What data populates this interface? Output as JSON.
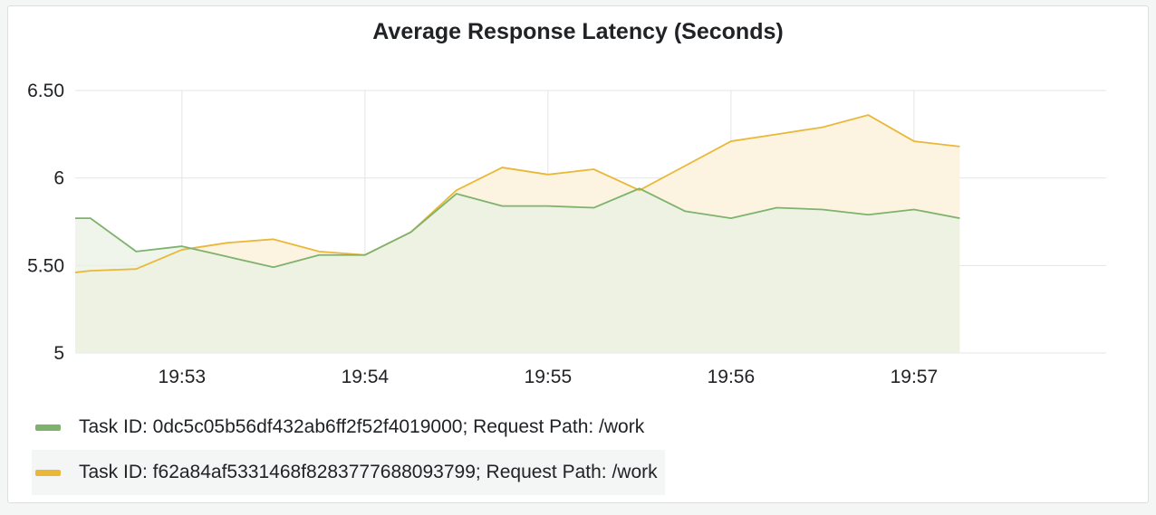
{
  "panel": {
    "title": "Average Response Latency (Seconds)"
  },
  "colors": {
    "series_green": "#7eb26d",
    "series_yellow": "#eab839",
    "fill_green": "#e9f1e3",
    "fill_yellow": "#fcf4e1",
    "grid": "#e3e4e6",
    "axis_text": "#202226"
  },
  "chart_data": {
    "type": "area",
    "title": "Average Response Latency (Seconds)",
    "xlabel": "",
    "ylabel": "",
    "ylim": [
      5,
      6.5
    ],
    "x_range": [
      "19:52:25",
      "19:57:15"
    ],
    "yticks": [
      {
        "value": 5,
        "label": "5"
      },
      {
        "value": 5.5,
        "label": "5.50"
      },
      {
        "value": 6,
        "label": "6"
      },
      {
        "value": 6.5,
        "label": "6.50"
      }
    ],
    "xticks": [
      "19:53",
      "19:54",
      "19:55",
      "19:56",
      "19:57"
    ],
    "grid": true,
    "legend_position": "bottom",
    "x": [
      "19:52:25",
      "19:52:30",
      "19:52:45",
      "19:53:00",
      "19:53:15",
      "19:53:30",
      "19:53:45",
      "19:54:00",
      "19:54:15",
      "19:54:30",
      "19:54:45",
      "19:55:00",
      "19:55:15",
      "19:55:30",
      "19:55:45",
      "19:56:00",
      "19:56:15",
      "19:56:30",
      "19:56:45",
      "19:57:00",
      "19:57:15"
    ],
    "series": [
      {
        "name": "Task ID: 0dc5c05b56df432ab6ff2f52f4019000; Request Path: /work",
        "color": "#7eb26d",
        "values": [
          5.77,
          5.77,
          5.58,
          5.61,
          5.55,
          5.49,
          5.56,
          5.56,
          5.69,
          5.91,
          5.84,
          5.84,
          5.83,
          5.94,
          5.81,
          5.77,
          5.83,
          5.82,
          5.79,
          5.82,
          5.77
        ]
      },
      {
        "name": "Task ID: f62a84af5331468f8283777688093799; Request Path: /work",
        "color": "#eab839",
        "values": [
          5.46,
          5.47,
          5.48,
          5.59,
          5.63,
          5.65,
          5.58,
          5.56,
          5.69,
          5.93,
          6.06,
          6.02,
          6.05,
          5.93,
          6.07,
          6.21,
          6.25,
          6.29,
          6.36,
          6.21,
          6.18
        ]
      }
    ]
  },
  "legend": {
    "items": [
      {
        "label": "Task ID: 0dc5c05b56df432ab6ff2f52f4019000; Request Path: /work"
      },
      {
        "label": "Task ID: f62a84af5331468f8283777688093799; Request Path: /work"
      }
    ]
  }
}
